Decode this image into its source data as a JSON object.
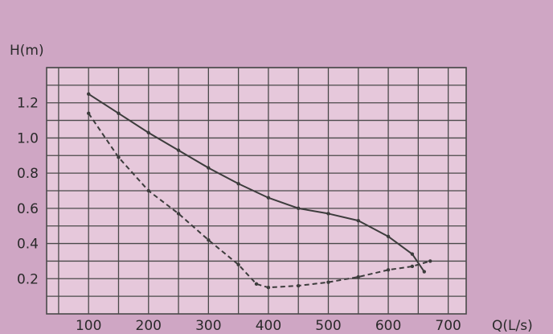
{
  "chart_data": {
    "type": "line",
    "title": "",
    "xlabel": "Q(L/s)",
    "ylabel": "H(m)",
    "xlim": [
      30,
      730
    ],
    "ylim": [
      0.0,
      1.4
    ],
    "x_ticks": [
      100,
      200,
      300,
      400,
      500,
      600,
      700
    ],
    "y_ticks": [
      0.2,
      0.4,
      0.6,
      0.8,
      1.0,
      1.2
    ],
    "grid": true,
    "legend": "none",
    "colors": {
      "background": "#cfa6c4",
      "plot_background": "#e6c8db",
      "grid": "#4a4a4a",
      "upper_curve": "#3c3c3c",
      "lower_curve": "#3c3c3c"
    },
    "series": [
      {
        "line": "solid",
        "x": [
          100,
          150,
          200,
          250,
          300,
          350,
          400,
          450,
          500,
          550,
          600,
          640,
          660
        ],
        "y": [
          1.25,
          1.14,
          1.03,
          0.93,
          0.83,
          0.74,
          0.66,
          0.6,
          0.57,
          0.53,
          0.44,
          0.34,
          0.24
        ]
      },
      {
        "line": "dashed",
        "x": [
          100,
          150,
          200,
          250,
          300,
          350,
          380,
          400,
          450,
          500,
          550,
          600,
          640,
          670
        ],
        "y": [
          1.14,
          0.89,
          0.7,
          0.57,
          0.42,
          0.28,
          0.17,
          0.15,
          0.16,
          0.18,
          0.21,
          0.25,
          0.27,
          0.3
        ]
      }
    ]
  }
}
